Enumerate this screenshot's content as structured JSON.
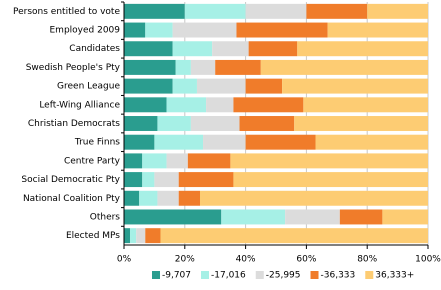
{
  "chart_data": {
    "type": "stacked-bar-horizontal",
    "categories": [
      "Persons entitled to vote",
      "Employed 2009",
      "Candidates",
      "Swedish People's Pty",
      "Green League",
      "Left-Wing Alliance",
      "Christian Democrats",
      "True Finns",
      "Centre Party",
      "Social Democratic Pty",
      "National Coalition Pty",
      "Others",
      "Elected MPs"
    ],
    "series": [
      {
        "name": "-9,707",
        "color": "#2a9d8f",
        "values": [
          20,
          7,
          16,
          17,
          16,
          14,
          11,
          10,
          6,
          6,
          5,
          32,
          2
        ]
      },
      {
        "name": "-17,016",
        "color": "#a6f0e6",
        "values": [
          20,
          9,
          13,
          5,
          8,
          13,
          11,
          16,
          8,
          4,
          6,
          21,
          2
        ]
      },
      {
        "name": "-25,995",
        "color": "#dcdcdc",
        "values": [
          20,
          21,
          12,
          8,
          16,
          9,
          16,
          14,
          7,
          8,
          7,
          18,
          3
        ]
      },
      {
        "name": "-36,333",
        "color": "#f07c2a",
        "values": [
          20,
          30,
          16,
          15,
          12,
          23,
          18,
          23,
          14,
          18,
          7,
          14,
          5
        ]
      },
      {
        "name": "36,333+",
        "color": "#fdcc73",
        "values": [
          20,
          33,
          43,
          55,
          48,
          41,
          44,
          37,
          65,
          64,
          75,
          15,
          88
        ]
      }
    ],
    "xlim": [
      0,
      100
    ],
    "xticks": [
      {
        "value": 0,
        "label": "0%"
      },
      {
        "value": 20,
        "label": "20%"
      },
      {
        "value": 40,
        "label": "40%"
      },
      {
        "value": 60,
        "label": "60%"
      },
      {
        "value": 80,
        "label": "80%"
      },
      {
        "value": 100,
        "label": "100%"
      }
    ],
    "grid": true,
    "legend": "bottom"
  }
}
